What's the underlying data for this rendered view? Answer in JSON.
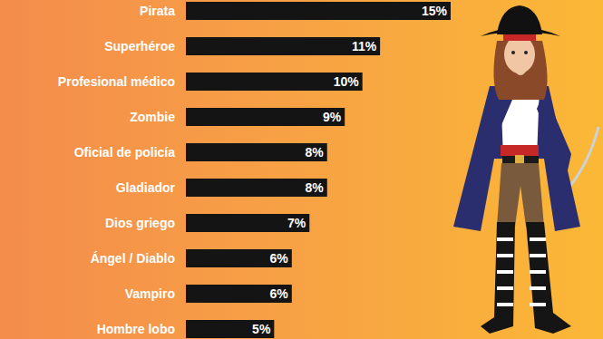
{
  "chart_data": {
    "type": "bar",
    "orientation": "horizontal",
    "categories": [
      "Pirata",
      "Superhéroe",
      "Profesional médico",
      "Zombie",
      "Oficial de policía",
      "Gladiador",
      "Dios griego",
      "Ángel / Diablo",
      "Vampiro",
      "Hombre lobo"
    ],
    "values": [
      15,
      11,
      10,
      9,
      8,
      8,
      7,
      6,
      6,
      5
    ],
    "value_labels": [
      "15%",
      "11%",
      "10%",
      "9%",
      "8%",
      "8%",
      "7%",
      "6%",
      "6%",
      "5%"
    ],
    "color": "#141414",
    "xlim": [
      0,
      15
    ],
    "data_labels": true,
    "tick_labels": "y",
    "grid": false
  }
}
